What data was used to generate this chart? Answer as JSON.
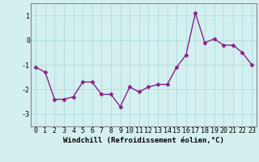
{
  "x": [
    0,
    1,
    2,
    3,
    4,
    5,
    6,
    7,
    8,
    9,
    10,
    11,
    12,
    13,
    14,
    15,
    16,
    17,
    18,
    19,
    20,
    21,
    22,
    23
  ],
  "y": [
    -1.1,
    -1.3,
    -2.4,
    -2.4,
    -2.3,
    -1.7,
    -1.7,
    -2.2,
    -2.2,
    -2.7,
    -1.9,
    -2.1,
    -1.9,
    -1.8,
    -1.8,
    -1.1,
    -0.6,
    1.1,
    -0.1,
    0.05,
    -0.2,
    -0.2,
    -0.5,
    -1.0
  ],
  "line_color": "#882288",
  "marker": "D",
  "bg_color": "#d4efef",
  "grid_color": "#aadddd",
  "xlabel": "Windchill (Refroidissement éolien,°C)",
  "ylabel": "",
  "xlim": [
    -0.5,
    23.5
  ],
  "ylim": [
    -3.5,
    1.5
  ],
  "yticks": [
    -3,
    -2,
    -1,
    0,
    1
  ],
  "xtick_labels": [
    "0",
    "1",
    "2",
    "3",
    "4",
    "5",
    "6",
    "7",
    "8",
    "9",
    "10",
    "11",
    "12",
    "13",
    "14",
    "15",
    "16",
    "17",
    "18",
    "19",
    "20",
    "21",
    "22",
    "23"
  ],
  "xlabel_fontsize": 6.5,
  "tick_fontsize": 6.0,
  "line_width": 1.0,
  "marker_size": 2.5
}
